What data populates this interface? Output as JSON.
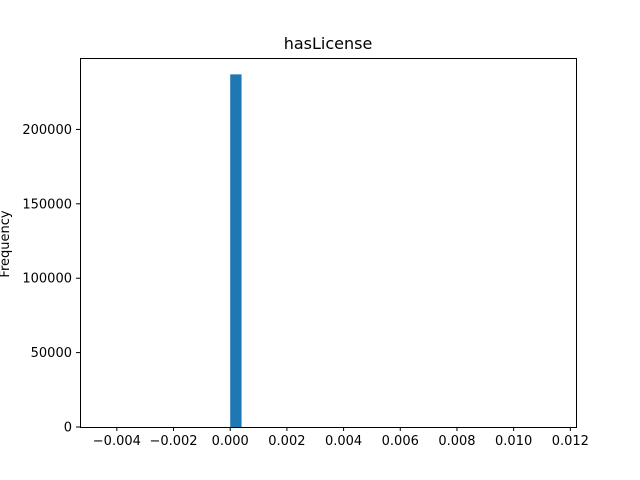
{
  "chart_data": {
    "type": "bar",
    "title": "hasLicense",
    "xlabel": "",
    "ylabel": "Frequency",
    "bins": [
      {
        "x0": 0.0,
        "x1": 0.0004,
        "value": 237000
      }
    ],
    "xlim": [
      -0.0053,
      0.0122
    ],
    "ylim": [
      0,
      248000
    ],
    "x_ticks": [
      -0.004,
      -0.002,
      0.0,
      0.002,
      0.004,
      0.006,
      0.008,
      0.01,
      0.012
    ],
    "x_tick_labels": [
      "−0.004",
      "−0.002",
      "0.000",
      "0.002",
      "0.004",
      "0.006",
      "0.008",
      "0.010",
      "0.012"
    ],
    "y_ticks": [
      0,
      50000,
      100000,
      150000,
      200000
    ],
    "y_tick_labels": [
      "0",
      "50000",
      "100000",
      "150000",
      "200000"
    ],
    "grid": false,
    "bar_color": "#1f77b4"
  }
}
